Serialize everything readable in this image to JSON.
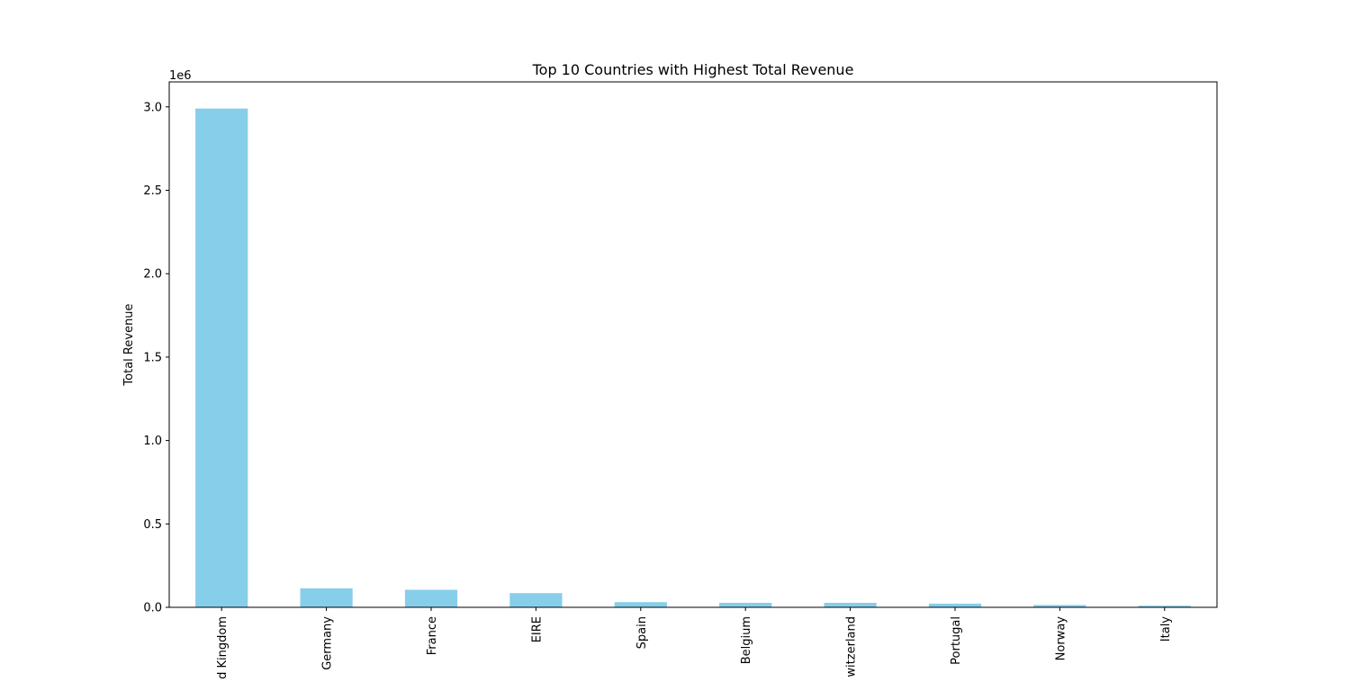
{
  "chart_data": {
    "type": "bar",
    "title": "Top 10 Countries with Highest Total Revenue",
    "xlabel": "",
    "ylabel": "Total Revenue",
    "offset_label": "1e6",
    "categories": [
      "United Kingdom",
      "Germany",
      "France",
      "EIRE",
      "Spain",
      "Belgium",
      "Switzerland",
      "Portugal",
      "Norway",
      "Italy"
    ],
    "tick_labels": [
      "d Kingdom",
      "Germany",
      "France",
      "EIRE",
      "Spain",
      "Belgium",
      "witzerland",
      "Portugal",
      "Norway",
      "Italy"
    ],
    "values": [
      2990000,
      114000,
      105000,
      85000,
      31000,
      27000,
      27000,
      22000,
      14000,
      10000
    ],
    "ylim": [
      0,
      3150000
    ],
    "yticks": [
      0,
      500000,
      1000000,
      1500000,
      2000000,
      2500000,
      3000000
    ],
    "ytick_labels": [
      "0.0",
      "0.5",
      "1.0",
      "1.5",
      "2.0",
      "2.5",
      "3.0"
    ],
    "bar_color": "#87CEEB",
    "grid": false,
    "legend": "none"
  }
}
